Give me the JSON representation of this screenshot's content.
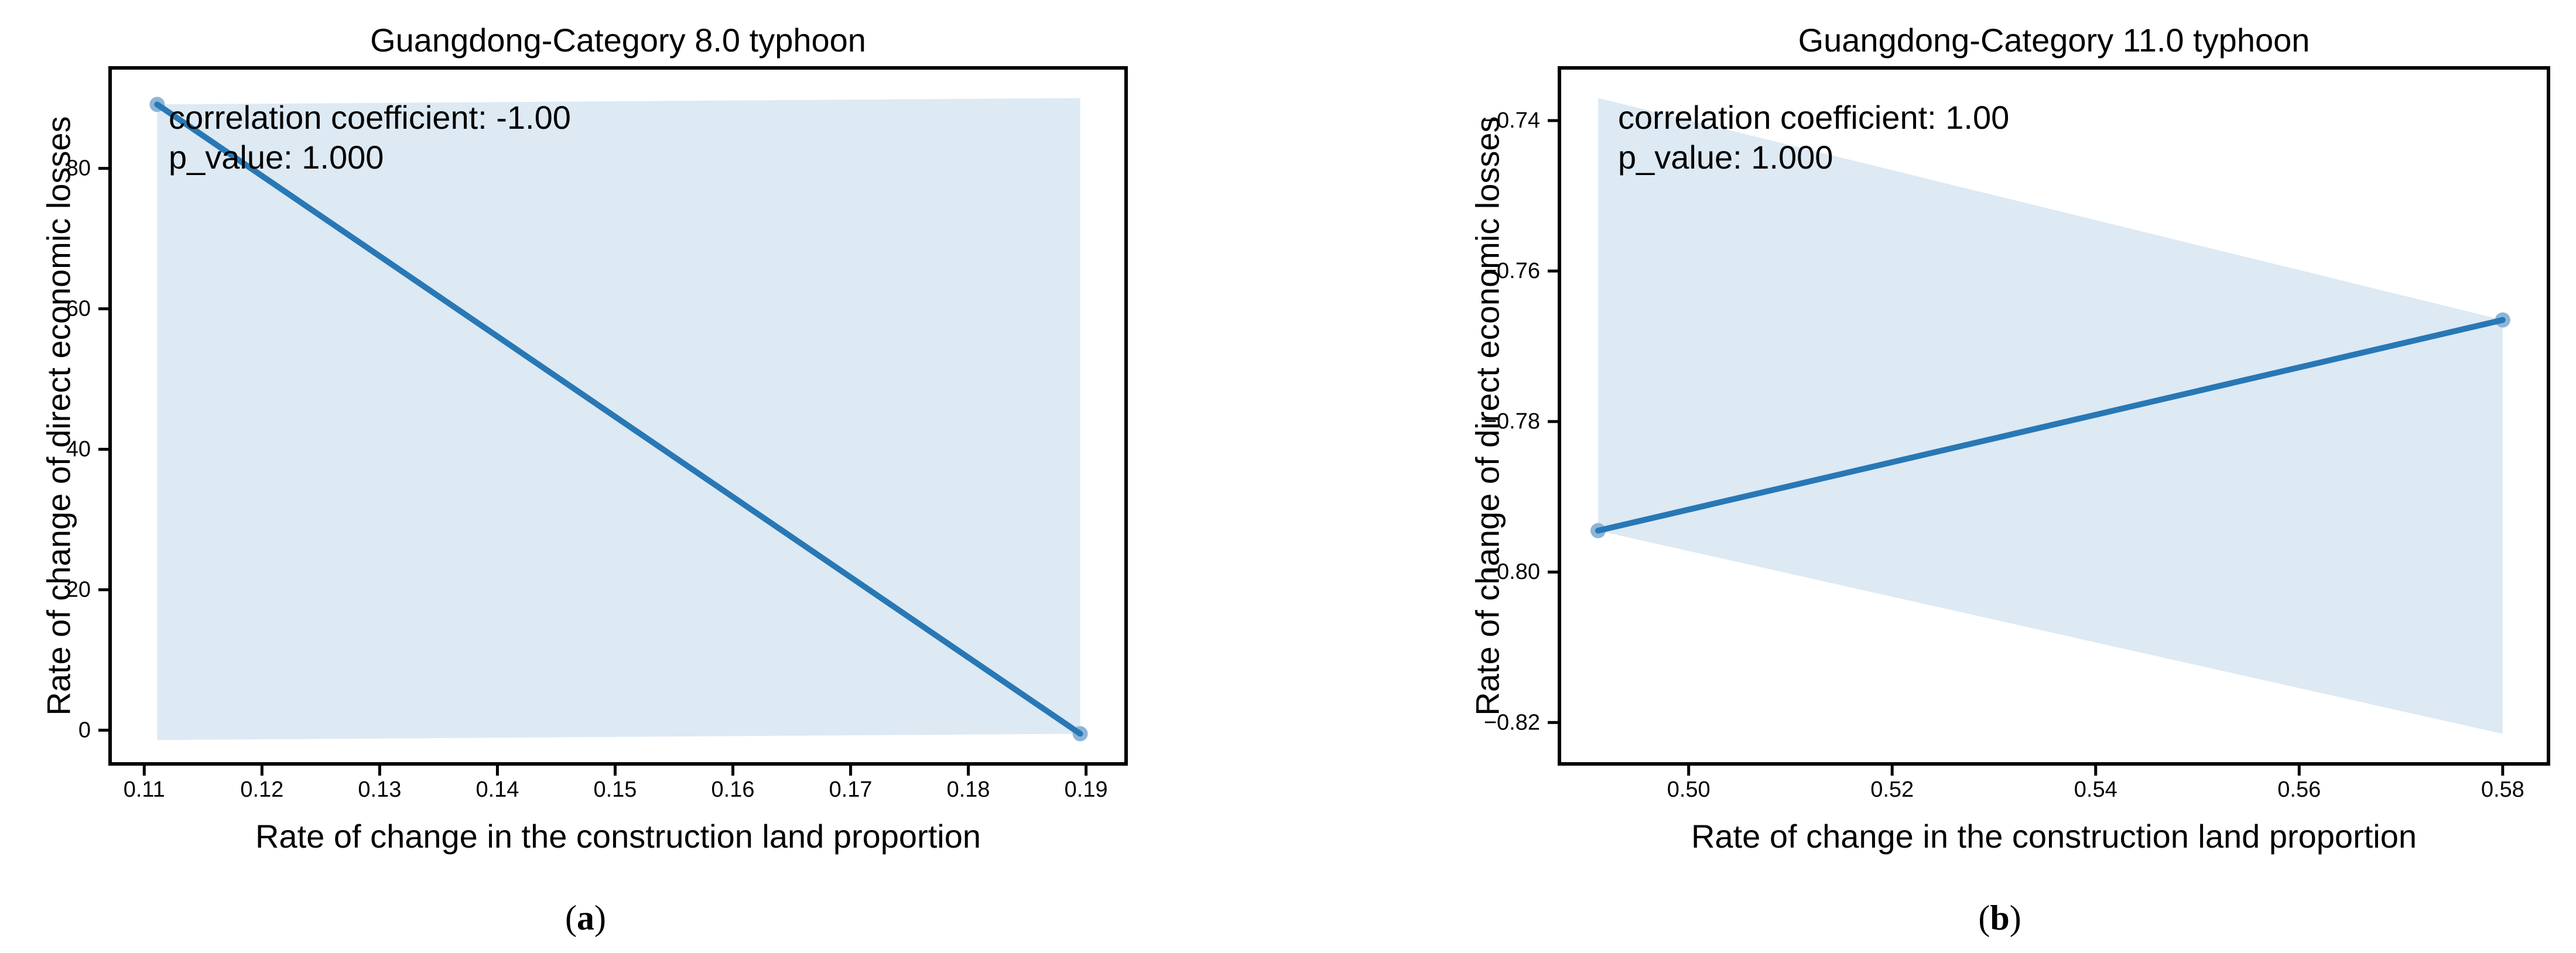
{
  "page": {
    "background": "#ffffff"
  },
  "figure": {
    "captions": {
      "a": {
        "open": "(",
        "letter": "a",
        "close": ")"
      },
      "b": {
        "open": "(",
        "letter": "b",
        "close": ")"
      }
    }
  },
  "chart_data": [
    {
      "type": "line",
      "title": "Guangdong-Category 8.0 typhoon",
      "xlabel": "Rate of change in the construction land proportion",
      "ylabel": "Rate of change of direct economic losses",
      "annotation": [
        "correlation coefficient: -1.00",
        "p_value: 1.000"
      ],
      "correlation_coefficient": -1.0,
      "p_value": 1.0,
      "x": [
        0.1111,
        0.1895
      ],
      "y": [
        89.1,
        -0.5
      ],
      "xlim": [
        0.1071,
        0.1934
      ],
      "ylim": [
        -4.8,
        94.3
      ],
      "xticks": [
        {
          "v": 0.11,
          "label": "0.11"
        },
        {
          "v": 0.12,
          "label": "0.12"
        },
        {
          "v": 0.13,
          "label": "0.13"
        },
        {
          "v": 0.14,
          "label": "0.14"
        },
        {
          "v": 0.15,
          "label": "0.15"
        },
        {
          "v": 0.16,
          "label": "0.16"
        },
        {
          "v": 0.17,
          "label": "0.17"
        },
        {
          "v": 0.18,
          "label": "0.18"
        },
        {
          "v": 0.19,
          "label": "0.19"
        }
      ],
      "yticks": [
        {
          "v": 0,
          "label": "0"
        },
        {
          "v": 20,
          "label": "20"
        },
        {
          "v": 40,
          "label": "40"
        },
        {
          "v": 60,
          "label": "60"
        },
        {
          "v": 80,
          "label": "80"
        }
      ],
      "confidence_band": [
        [
          0.1111,
          89.1
        ],
        [
          0.1895,
          90.0
        ],
        [
          0.1895,
          -0.5
        ],
        [
          0.1111,
          -1.4
        ]
      ],
      "grid": false,
      "legend": null,
      "colors": {
        "line": "#2878b5",
        "marker": "#8cb5d8",
        "band": "#dde9f3",
        "axis": "#000000"
      }
    },
    {
      "type": "line",
      "title": "Guangdong-Category 11.0 typhoon",
      "xlabel": "Rate of change in the construction land proportion",
      "ylabel": "Rate of change of direct economic losses",
      "annotation": [
        "correlation coefficient: 1.00",
        "p_value: 1.000"
      ],
      "correlation_coefficient": 1.0,
      "p_value": 1.0,
      "x": [
        0.4911,
        0.58
      ],
      "y": [
        -0.7945,
        -0.7665
      ],
      "xlim": [
        0.4873,
        0.5845
      ],
      "ylim": [
        -0.8255,
        -0.733
      ],
      "xticks": [
        {
          "v": 0.5,
          "label": "0.50"
        },
        {
          "v": 0.52,
          "label": "0.52"
        },
        {
          "v": 0.54,
          "label": "0.54"
        },
        {
          "v": 0.56,
          "label": "0.56"
        },
        {
          "v": 0.58,
          "label": "0.58"
        }
      ],
      "yticks": [
        {
          "v": -0.74,
          "label": "−0.74"
        },
        {
          "v": -0.76,
          "label": "−0.76"
        },
        {
          "v": -0.78,
          "label": "−0.78"
        },
        {
          "v": -0.8,
          "label": "−0.80"
        },
        {
          "v": -0.82,
          "label": "−0.82"
        }
      ],
      "confidence_band": [
        [
          0.4911,
          -0.737
        ],
        [
          0.58,
          -0.7665
        ],
        [
          0.58,
          -0.8215
        ],
        [
          0.4911,
          -0.7945
        ]
      ],
      "grid": false,
      "legend": null,
      "colors": {
        "line": "#2878b5",
        "marker": "#8cb5d8",
        "band": "#dde9f3",
        "axis": "#000000"
      }
    }
  ]
}
